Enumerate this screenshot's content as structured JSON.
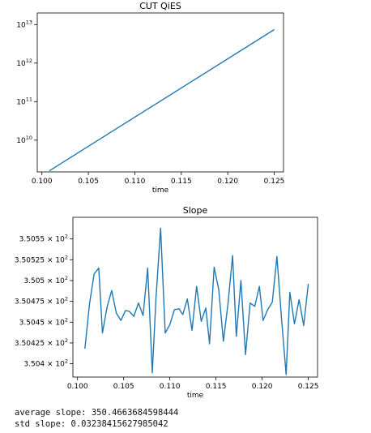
{
  "output": {
    "average_line": "average slope: 350.4663684598444",
    "std_line": "std slope: 0.03238415627985042"
  },
  "chart_data": [
    {
      "type": "line",
      "title": "CUT QiES",
      "xlabel": "time",
      "ylabel": "",
      "yscale": "log",
      "xlim": [
        0.0995,
        0.126
      ],
      "ylim": [
        1500000000.0,
        20000000000000.0
      ],
      "xticks": [
        0.1,
        0.105,
        0.11,
        0.115,
        0.12,
        0.125
      ],
      "xtick_labels": [
        "0.100",
        "0.105",
        "0.110",
        "0.115",
        "0.120",
        "0.125"
      ],
      "yticks": [
        10000000000.0,
        100000000000.0,
        1000000000000.0,
        10000000000000.0
      ],
      "ytick_labels": [
        {
          "base": "10",
          "exp": "10"
        },
        {
          "base": "10",
          "exp": "11"
        },
        {
          "base": "10",
          "exp": "12"
        },
        {
          "base": "10",
          "exp": "13"
        }
      ],
      "color": "#1f77b4",
      "x": [
        0.1008,
        0.125
      ],
      "y": [
        1600000000.0,
        7400000000000.0
      ]
    },
    {
      "type": "line",
      "title": "Slope",
      "xlabel": "time",
      "ylabel": "",
      "yscale": "log",
      "xlim": [
        0.0995,
        0.126
      ],
      "ylim": [
        350.384,
        350.576
      ],
      "xticks": [
        0.1,
        0.105,
        0.11,
        0.115,
        0.12,
        0.125
      ],
      "xtick_labels": [
        "0.100",
        "0.105",
        "0.110",
        "0.115",
        "0.120",
        "0.125"
      ],
      "yticks": [
        350.4,
        350.425,
        350.45,
        350.475,
        350.5,
        350.525,
        350.55
      ],
      "ytick_labels": [
        {
          "base": "3.504 × 10",
          "exp": "2"
        },
        {
          "base": "3.50425 × 10",
          "exp": "2"
        },
        {
          "base": "3.5045 × 10",
          "exp": "2"
        },
        {
          "base": "3.50475 × 10",
          "exp": "2"
        },
        {
          "base": "3.505 × 10",
          "exp": "2"
        },
        {
          "base": "3.50525 × 10",
          "exp": "2"
        },
        {
          "base": "3.5055 × 10",
          "exp": "2"
        }
      ],
      "color": "#1f77b4",
      "x": [
        0.1008,
        0.1013,
        0.1018,
        0.1023,
        0.1027,
        0.1032,
        0.1037,
        0.1042,
        0.1047,
        0.1052,
        0.1056,
        0.1061,
        0.1066,
        0.1071,
        0.1076,
        0.1081,
        0.1085,
        0.109,
        0.1095,
        0.11,
        0.1105,
        0.111,
        0.1114,
        0.1119,
        0.1124,
        0.1129,
        0.1134,
        0.1139,
        0.1143,
        0.1148,
        0.1153,
        0.1158,
        0.1163,
        0.1168,
        0.1172,
        0.1177,
        0.1182,
        0.1187,
        0.1192,
        0.1197,
        0.1201,
        0.1206,
        0.1211,
        0.1216,
        0.1221,
        0.1226,
        0.123,
        0.1235,
        0.124,
        0.1245,
        0.125
      ],
      "y": [
        350.418,
        350.472,
        350.508,
        350.515,
        350.437,
        350.468,
        350.488,
        350.461,
        350.452,
        350.464,
        350.463,
        350.457,
        350.473,
        350.458,
        350.515,
        350.389,
        350.479,
        350.563,
        350.437,
        350.447,
        350.465,
        350.466,
        350.459,
        350.478,
        350.44,
        350.493,
        350.451,
        350.467,
        350.424,
        350.516,
        350.489,
        350.427,
        350.472,
        350.53,
        350.433,
        350.5,
        350.411,
        350.473,
        350.469,
        350.493,
        350.452,
        350.465,
        350.474,
        350.529,
        350.454,
        350.387,
        350.486,
        350.448,
        350.477,
        350.446,
        350.496
      ]
    }
  ]
}
